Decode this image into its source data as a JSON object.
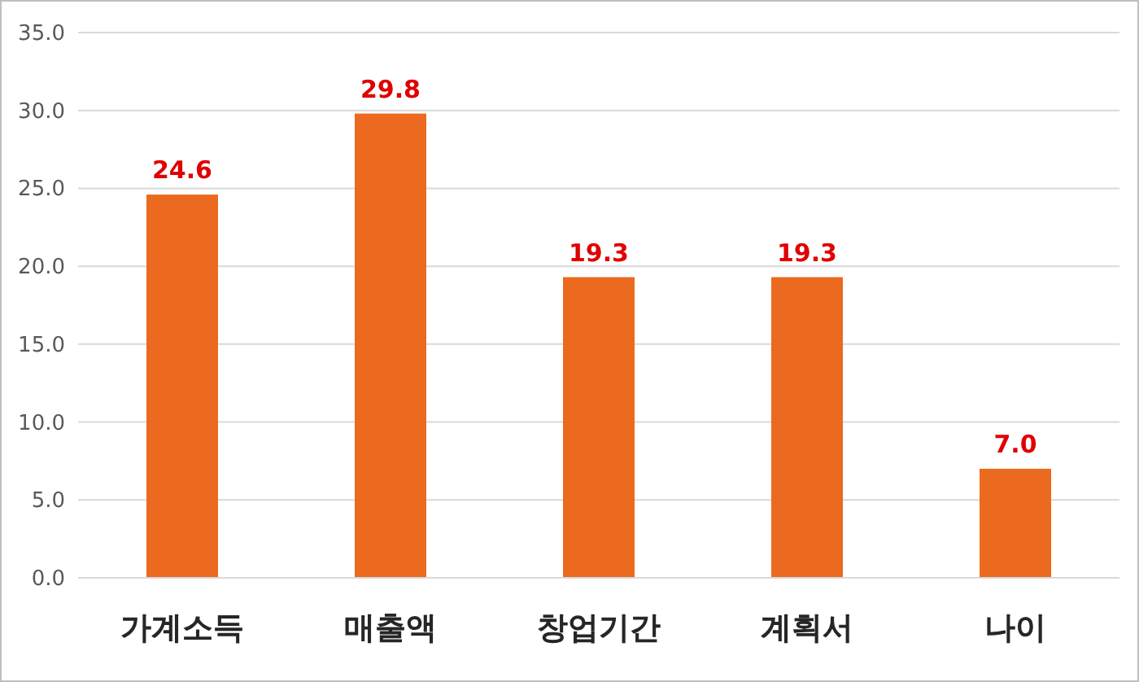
{
  "chart_data": {
    "type": "bar",
    "categories": [
      "가계소득",
      "매출액",
      "창업기간",
      "계획서",
      "나이"
    ],
    "values": [
      24.6,
      29.8,
      19.3,
      19.3,
      7.0
    ],
    "value_labels": [
      "24.6",
      "29.8",
      "19.3",
      "19.3",
      "7.0"
    ],
    "color": "#eb6a1f",
    "ylim": [
      0,
      35
    ],
    "yticks": [
      {
        "value": 0,
        "label": "0.0"
      },
      {
        "value": 5,
        "label": "5.0"
      },
      {
        "value": 10,
        "label": "10.0"
      },
      {
        "value": 15,
        "label": "15.0"
      },
      {
        "value": 20,
        "label": "20.0"
      },
      {
        "value": 25,
        "label": "25.0"
      },
      {
        "value": 30,
        "label": "30.0"
      },
      {
        "value": 35,
        "label": "35.0"
      }
    ],
    "grid": "y"
  }
}
